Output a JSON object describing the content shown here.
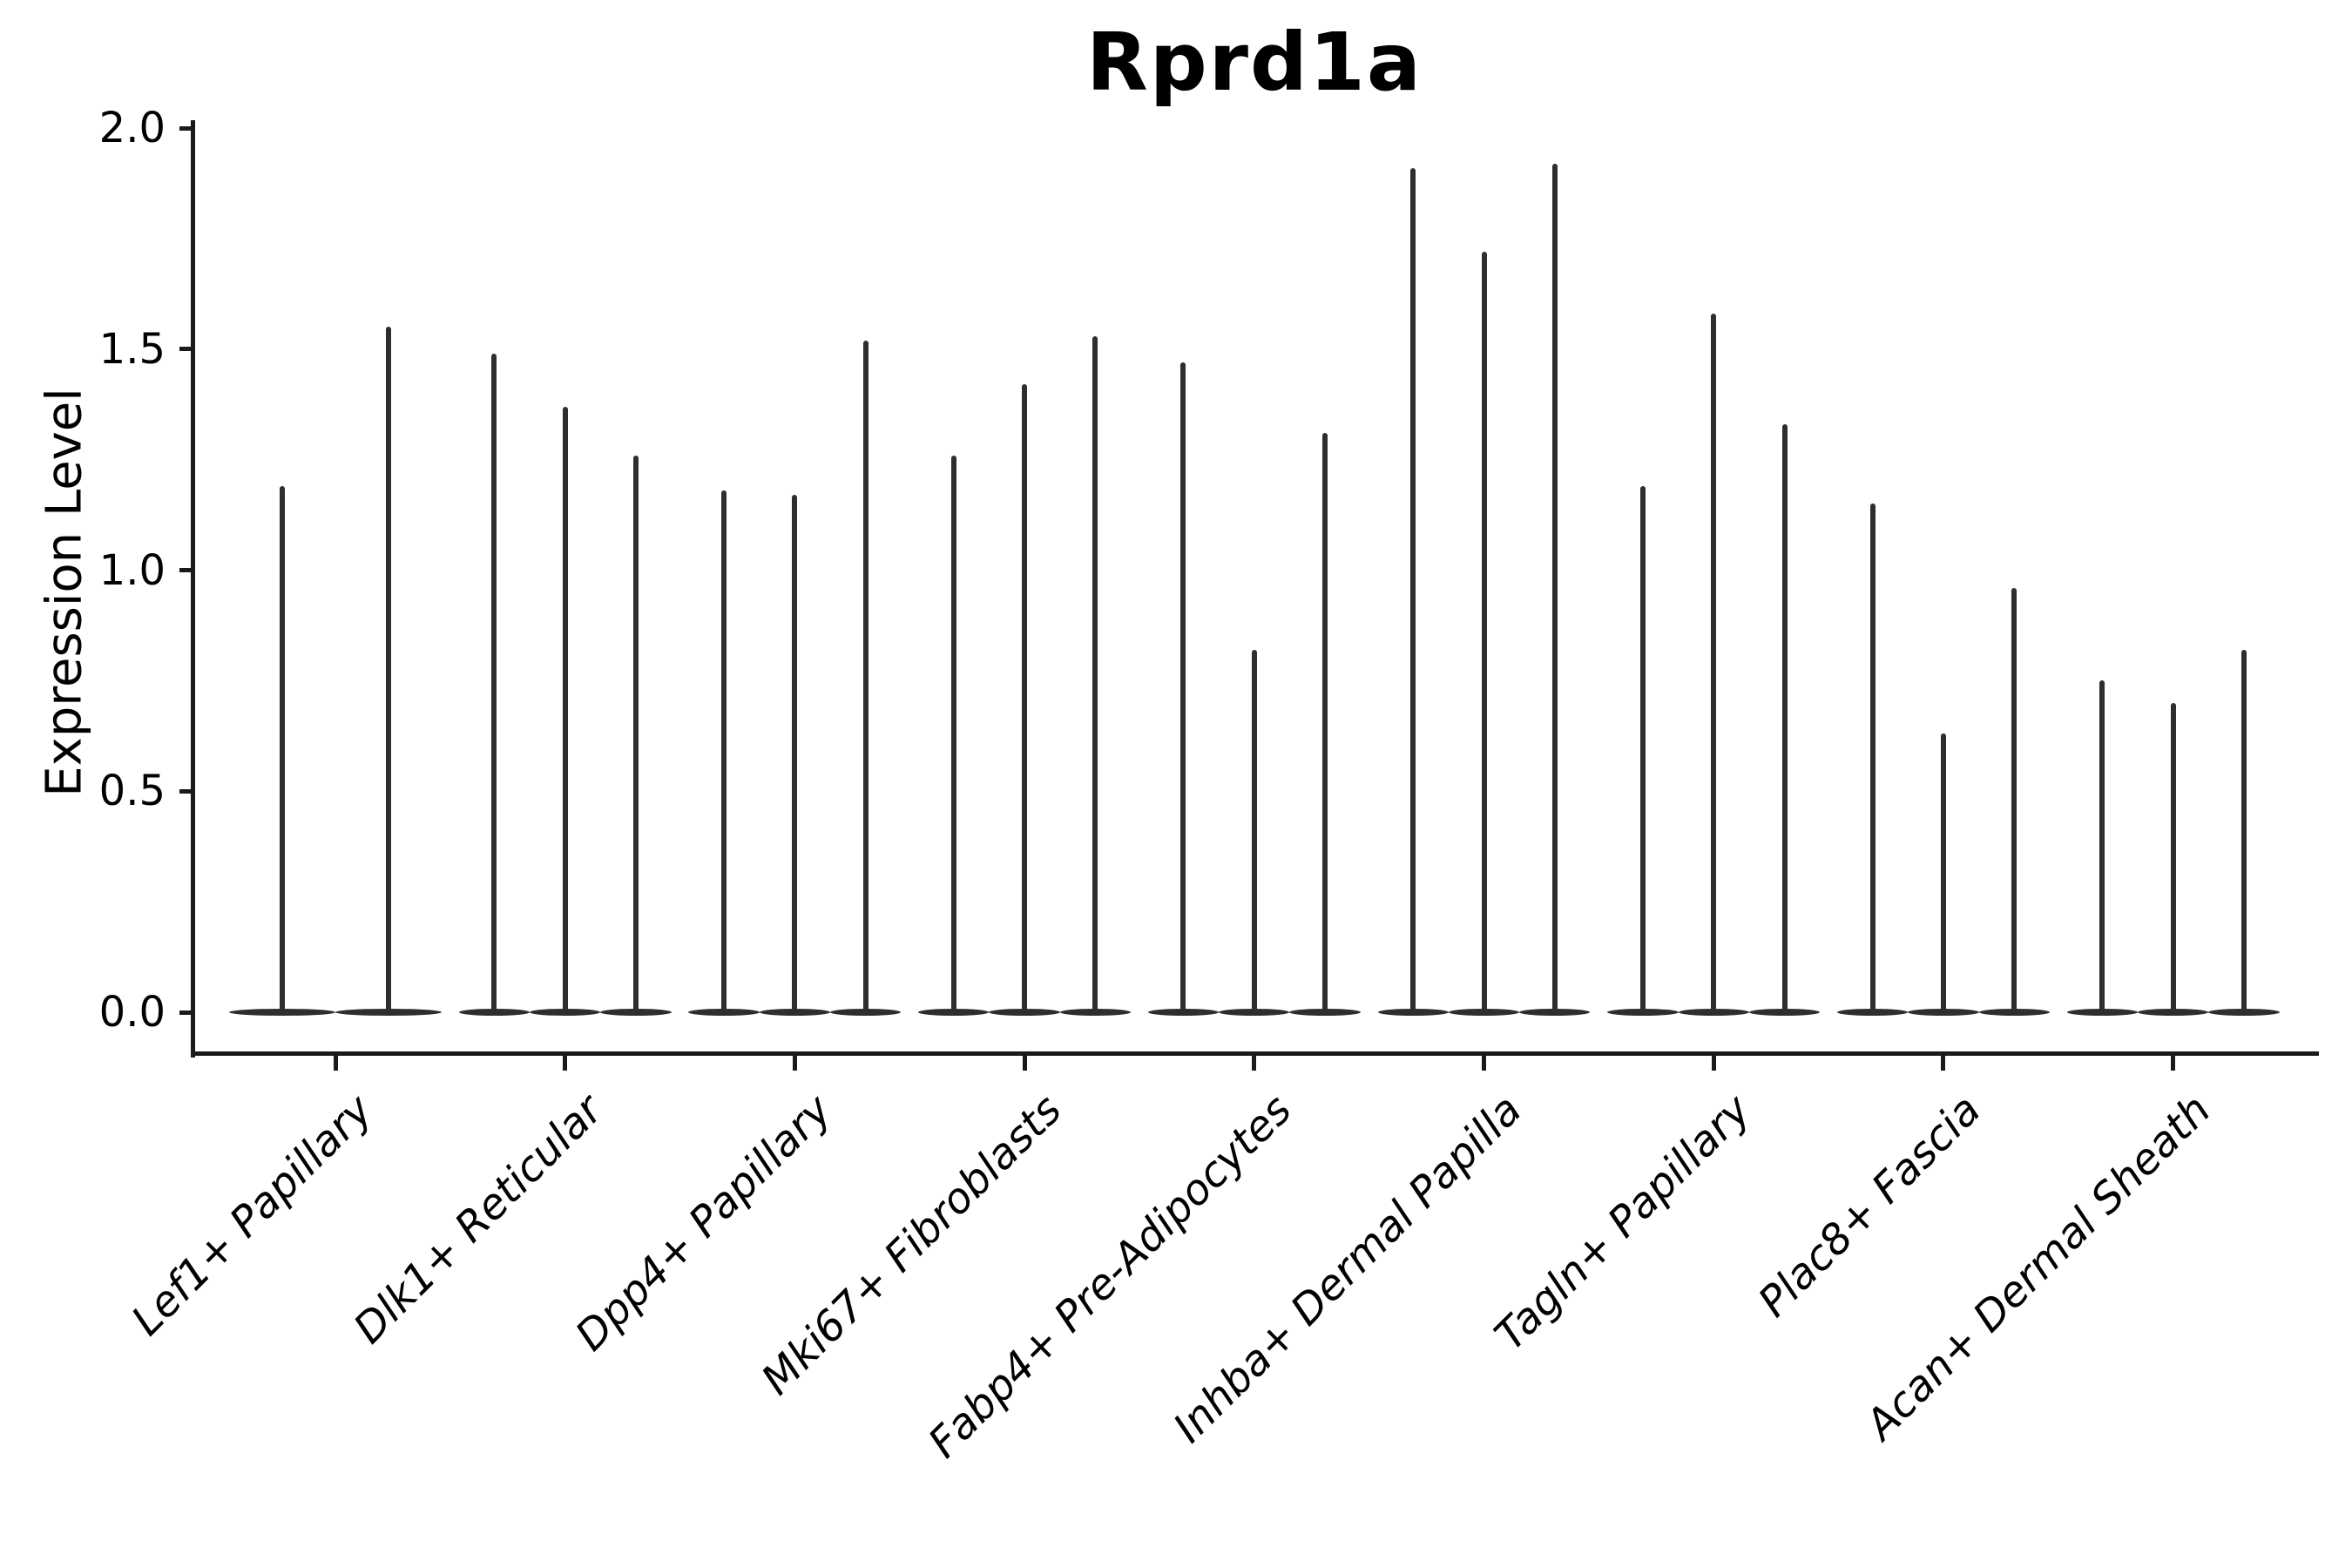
{
  "title": "Rprd1a",
  "axis": {
    "ylabel": "Expression Level",
    "ytick_labels": [
      "0.0",
      "0.5",
      "1.0",
      "1.5",
      "2.0"
    ]
  },
  "colors": {
    "violin": "#2e2e2e",
    "axis_line": "#1a1a1a",
    "text": "#000000",
    "background": "#ffffff"
  },
  "chart_data": {
    "type": "violin",
    "title": "Rprd1a",
    "xlabel": "",
    "ylabel": "Expression Level",
    "ylim": [
      -0.09,
      2.01
    ],
    "yticks": [
      0.0,
      0.5,
      1.0,
      1.5,
      2.0
    ],
    "grid": false,
    "legend": null,
    "description": "Narrow single-cell expression violins: each violin is a flat density lens at 0 with a thin central spike rising to the maximum expression value.",
    "categories": [
      "Lef1+ Papillary",
      "Dlk1+ Reticular",
      "Dpp4+ Papillary",
      "Mki67+ Fibroblasts",
      "Fabp4+ Pre-Adipocytes",
      "Inhba+ Dermal Papilla",
      "Tagln+ Papillary",
      "Plac8+ Fascia",
      "Acan+ Dermal Sheath"
    ],
    "series": [
      {
        "category": "Lef1+ Papillary",
        "violin_max_values": [
          1.19,
          1.55
        ]
      },
      {
        "category": "Dlk1+ Reticular",
        "violin_max_values": [
          1.49,
          1.37,
          1.26
        ]
      },
      {
        "category": "Dpp4+ Papillary",
        "violin_max_values": [
          1.18,
          1.17,
          1.52
        ]
      },
      {
        "category": "Mki67+ Fibroblasts",
        "violin_max_values": [
          1.26,
          1.42,
          1.53
        ]
      },
      {
        "category": "Fabp4+ Pre-Adipocytes",
        "violin_max_values": [
          1.47,
          0.82,
          1.31
        ]
      },
      {
        "category": "Inhba+ Dermal Papilla",
        "violin_max_values": [
          1.91,
          1.72,
          1.92
        ]
      },
      {
        "category": "Tagln+ Papillary",
        "violin_max_values": [
          1.19,
          1.58,
          1.33
        ]
      },
      {
        "category": "Plac8+ Fascia",
        "violin_max_values": [
          1.15,
          0.63,
          0.96
        ]
      },
      {
        "category": "Acan+ Dermal Sheath",
        "violin_max_values": [
          0.75,
          0.7,
          0.82
        ]
      }
    ]
  }
}
